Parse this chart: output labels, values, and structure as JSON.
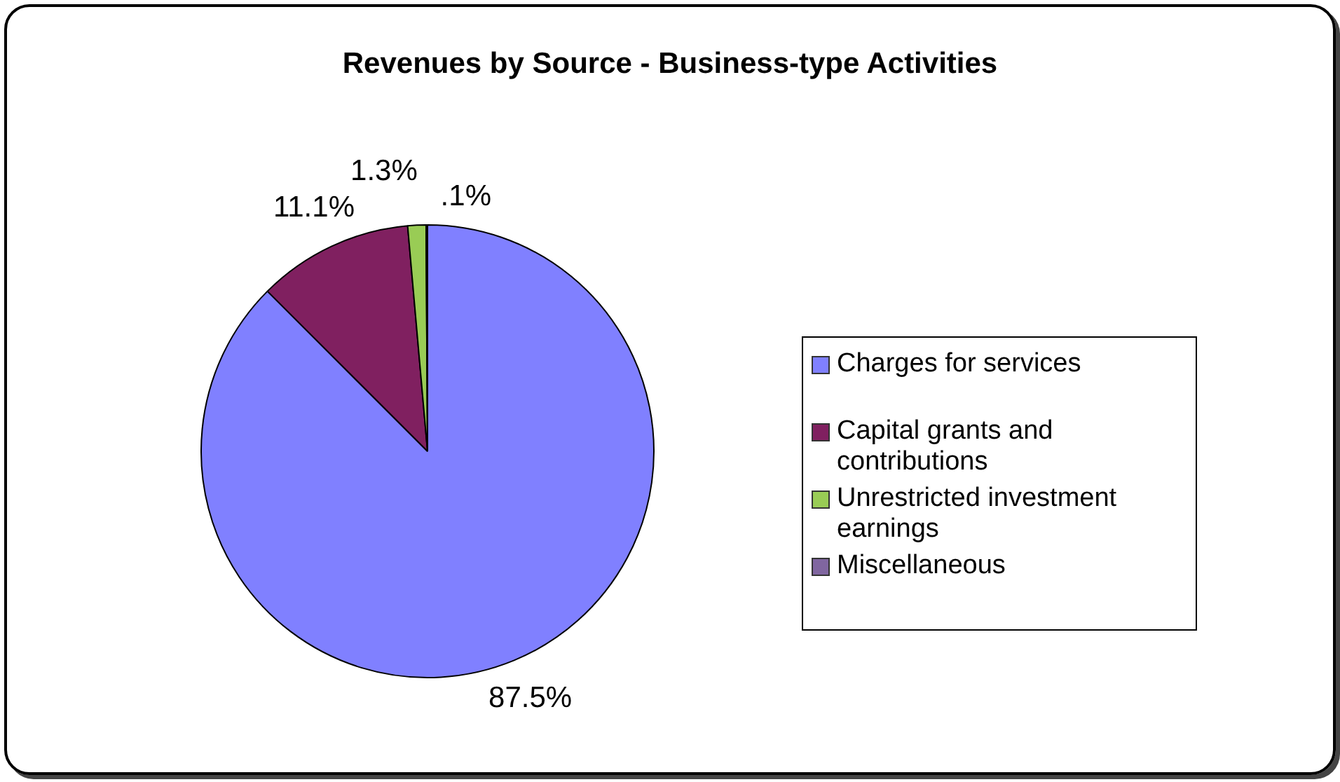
{
  "chart_data": {
    "type": "pie",
    "title": "Revenues by Source - Business-type Activities",
    "categories": [
      "Charges for services",
      "Capital grants and contributions",
      "Unrestricted investment earnings",
      "Miscellaneous"
    ],
    "values": [
      87.5,
      11.1,
      1.3,
      0.1
    ],
    "value_labels": [
      "87.5%",
      "11.1%",
      "1.3%",
      ".1%"
    ],
    "colors": [
      "#8080ff",
      "#802060",
      "#99cc55",
      "#8066a0"
    ],
    "legend": "right"
  }
}
